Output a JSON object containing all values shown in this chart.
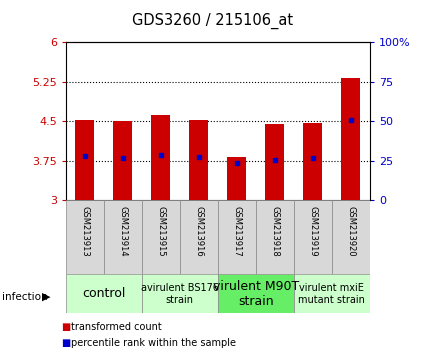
{
  "title": "GDS3260 / 215106_at",
  "samples": [
    "GSM213913",
    "GSM213914",
    "GSM213915",
    "GSM213916",
    "GSM213917",
    "GSM213918",
    "GSM213919",
    "GSM213920"
  ],
  "red_values": [
    4.52,
    4.5,
    4.62,
    4.52,
    3.82,
    4.44,
    4.46,
    5.33
  ],
  "blue_values": [
    3.83,
    3.8,
    3.85,
    3.82,
    3.7,
    3.77,
    3.8,
    4.52
  ],
  "ylim_left": [
    3.0,
    6.0
  ],
  "ylim_right": [
    0,
    100
  ],
  "yticks_left": [
    3.0,
    3.75,
    4.5,
    5.25,
    6.0
  ],
  "ytick_labels_left": [
    "3",
    "3.75",
    "4.5",
    "5.25",
    "6"
  ],
  "yticks_right": [
    0,
    25,
    50,
    75,
    100
  ],
  "ytick_labels_right": [
    "0",
    "25",
    "50",
    "75",
    "100%"
  ],
  "hlines": [
    3.75,
    4.5,
    5.25
  ],
  "bar_width": 0.5,
  "bar_color": "#cc0000",
  "dot_color": "#0000cc",
  "groups": [
    {
      "label": "control",
      "cols": [
        0,
        1
      ],
      "bg": "#ccffcc",
      "fontsize": 9
    },
    {
      "label": "avirulent BS176\nstrain",
      "cols": [
        2,
        3
      ],
      "bg": "#ccffcc",
      "fontsize": 7
    },
    {
      "label": "virulent M90T\nstrain",
      "cols": [
        4,
        5
      ],
      "bg": "#66ee66",
      "fontsize": 9
    },
    {
      "label": "virulent mxiE\nmutant strain",
      "cols": [
        6,
        7
      ],
      "bg": "#ccffcc",
      "fontsize": 7
    }
  ],
  "infection_label": "infection",
  "legend_red": "transformed count",
  "legend_blue": "percentile rank within the sample",
  "left_tick_color": "#cc0000",
  "right_tick_color": "#0000cc",
  "sample_box_color": "#d8d8d8"
}
